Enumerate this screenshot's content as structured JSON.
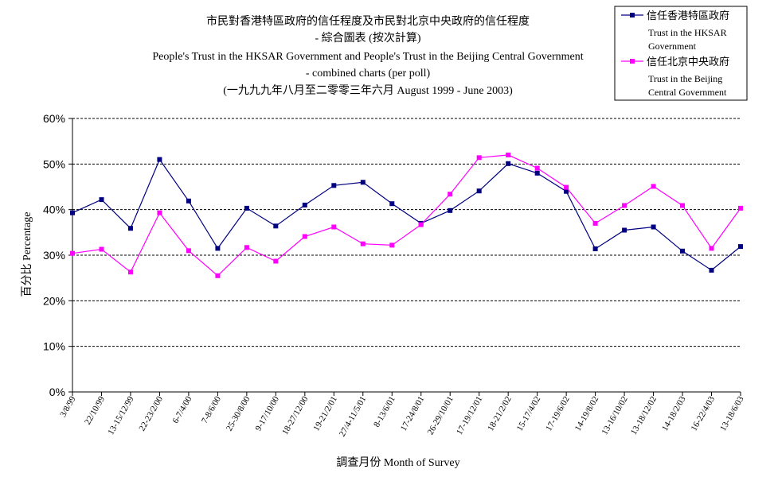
{
  "chart_data": {
    "type": "line",
    "title_lines": [
      "市民對香港特區政府的信任程度及市民對北京中央政府的信任程度",
      "- 綜合圖表 (按次計算)",
      "People's Trust in the HKSAR Government and People's Trust in the Beijing Central Government",
      "- combined charts (per poll)",
      "(一九九九年八月至二零零三年六月 August 1999 - June 2003)"
    ],
    "xlabel": "調查月份 Month of Survey",
    "ylabel": "百分比 Percentage",
    "ylim": [
      0,
      60
    ],
    "y_ticks": [
      "0%",
      "10%",
      "20%",
      "30%",
      "40%",
      "50%",
      "60%"
    ],
    "grid": "horizontal dashed",
    "legend_position": "top-right",
    "categories": [
      "3/8/99",
      "22/10/99",
      "13-15/12/99",
      "22-23/2/00",
      "6-7/4/00",
      "7-8/6/00",
      "25-30/8/00",
      "9-17/10/00",
      "18-27/12/00",
      "19-21/2/01",
      "27/4-11/5/01",
      "8-13/6/01",
      "17-24/8/01",
      "26-29/10/01",
      "17-19/12/01",
      "18-21/2/02",
      "15-17/4/02",
      "17-19/6/02",
      "14-19/8/02",
      "13-16/10/02",
      "13-18/12/02",
      "14-18/2/03",
      "16-22/4/03",
      "13-18/6/03"
    ],
    "series": [
      {
        "name": "信任香港特區政府",
        "name_en": [
          "Trust in the HKSAR",
          "Government"
        ],
        "color": "#000080",
        "values": [
          39.3,
          42.2,
          35.9,
          51.0,
          41.9,
          31.5,
          40.3,
          36.4,
          41.0,
          45.3,
          46.0,
          41.3,
          37.0,
          39.8,
          44.1,
          50.1,
          48.0,
          44.0,
          31.4,
          35.5,
          36.2,
          30.9,
          26.7,
          31.9
        ]
      },
      {
        "name": "信任北京中央政府",
        "name_en": [
          "Trust in the Beijing",
          "Central Government"
        ],
        "color": "#ff00ff",
        "values": [
          30.4,
          31.3,
          26.3,
          39.3,
          31.0,
          25.5,
          31.7,
          28.7,
          34.1,
          36.2,
          32.5,
          32.2,
          36.7,
          43.4,
          51.4,
          52.0,
          49.1,
          44.9,
          37.0,
          40.9,
          45.1,
          40.9,
          31.5,
          40.3
        ]
      }
    ]
  }
}
